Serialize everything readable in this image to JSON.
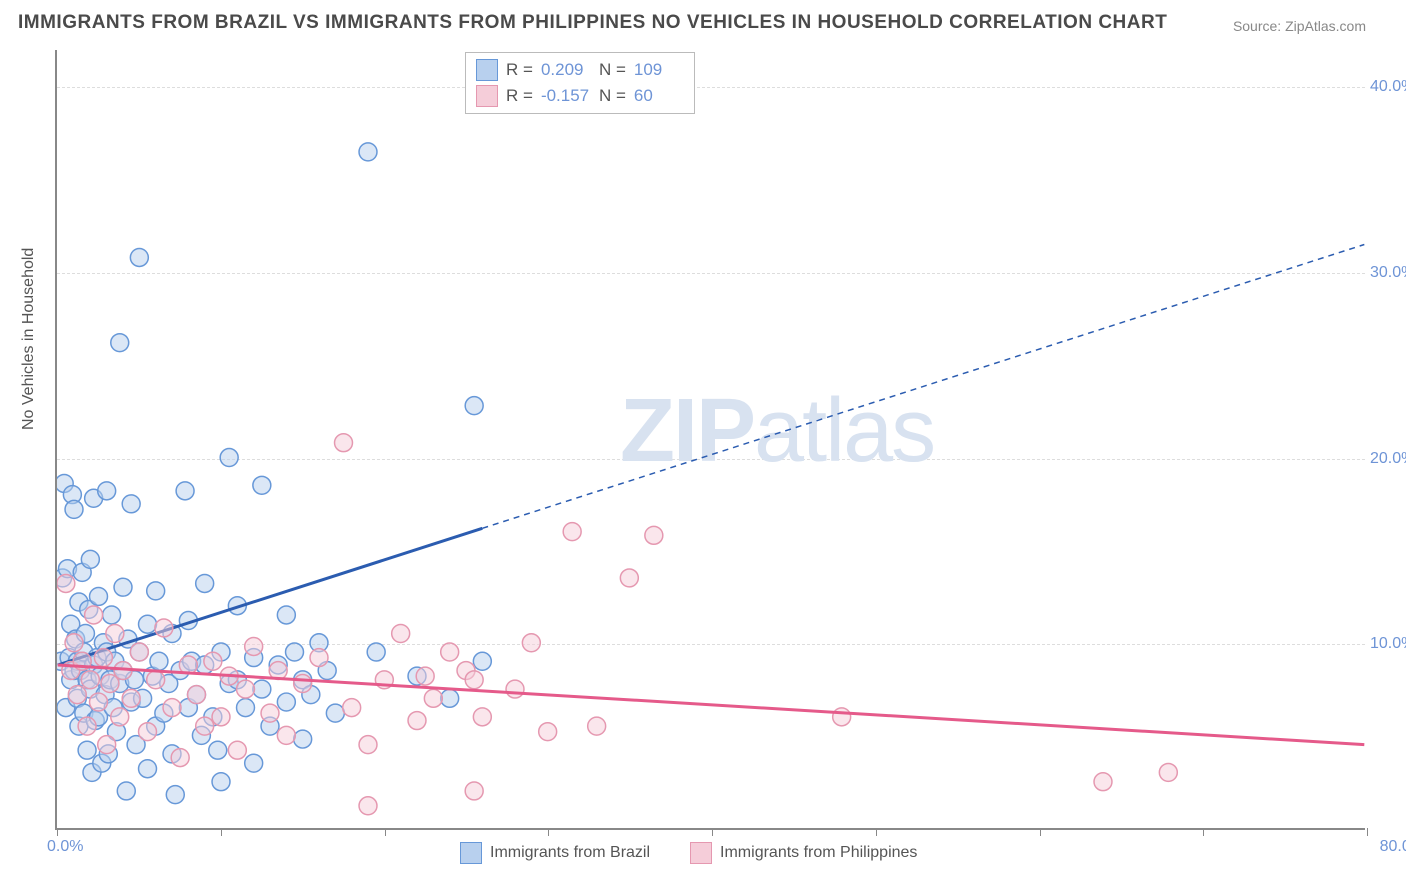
{
  "title": "IMMIGRANTS FROM BRAZIL VS IMMIGRANTS FROM PHILIPPINES NO VEHICLES IN HOUSEHOLD CORRELATION CHART",
  "source": "Source: ZipAtlas.com",
  "ylabel": "No Vehicles in Household",
  "watermark_a": "ZIP",
  "watermark_b": "atlas",
  "chart": {
    "type": "scatter-with-regression",
    "background_color": "#ffffff",
    "grid_color": "#dddddd",
    "axis_color": "#888888",
    "tick_label_color": "#6e94d6",
    "axis_label_color": "#555555",
    "xlim": [
      0,
      80
    ],
    "ylim": [
      0,
      42
    ],
    "xticks": [
      0,
      10,
      20,
      30,
      40,
      50,
      60,
      70,
      80
    ],
    "yticks": [
      10,
      20,
      30,
      40
    ],
    "xtick_labels": {
      "0": "0.0%",
      "80": "80.0%"
    },
    "ytick_labels": {
      "10": "10.0%",
      "20": "20.0%",
      "30": "30.0%",
      "40": "40.0%"
    },
    "marker_radius": 9,
    "marker_opacity": 0.5,
    "line_width_solid": 3,
    "line_width_dash": 1.5,
    "dash_pattern": "6,5"
  },
  "series": [
    {
      "name": "Immigrants from Brazil",
      "color_fill": "#b8d0ee",
      "color_stroke": "#6798d8",
      "line_color": "#2b5cb0",
      "R": "0.209",
      "N": "109",
      "regression": {
        "x1": 0,
        "y1": 8.8,
        "x2": 80,
        "y2": 31.5,
        "solid_until_x": 26
      },
      "points": [
        [
          0.2,
          9
        ],
        [
          0.3,
          13.5
        ],
        [
          0.4,
          18.6
        ],
        [
          0.5,
          6.5
        ],
        [
          0.6,
          14.0
        ],
        [
          0.7,
          9.2
        ],
        [
          0.8,
          11.0
        ],
        [
          0.8,
          8.0
        ],
        [
          0.9,
          18.0
        ],
        [
          1.0,
          17.2
        ],
        [
          1.0,
          8.5
        ],
        [
          1.1,
          10.2
        ],
        [
          1.2,
          7.0
        ],
        [
          1.2,
          9.0
        ],
        [
          1.3,
          5.5
        ],
        [
          1.3,
          12.2
        ],
        [
          1.4,
          8.5
        ],
        [
          1.5,
          9.0
        ],
        [
          1.5,
          13.8
        ],
        [
          1.6,
          6.2
        ],
        [
          1.6,
          9.5
        ],
        [
          1.7,
          10.5
        ],
        [
          1.8,
          8.0
        ],
        [
          1.8,
          4.2
        ],
        [
          1.9,
          11.8
        ],
        [
          2.0,
          7.5
        ],
        [
          2.0,
          14.5
        ],
        [
          2.1,
          3.0
        ],
        [
          2.2,
          8.8
        ],
        [
          2.2,
          17.8
        ],
        [
          2.3,
          5.8
        ],
        [
          2.4,
          9.2
        ],
        [
          2.5,
          6.0
        ],
        [
          2.5,
          12.5
        ],
        [
          2.6,
          8.2
        ],
        [
          2.7,
          3.5
        ],
        [
          2.8,
          10.0
        ],
        [
          2.9,
          7.2
        ],
        [
          3.0,
          9.5
        ],
        [
          3.0,
          18.2
        ],
        [
          3.1,
          4.0
        ],
        [
          3.2,
          8.0
        ],
        [
          3.3,
          11.5
        ],
        [
          3.4,
          6.5
        ],
        [
          3.5,
          9.0
        ],
        [
          3.6,
          5.2
        ],
        [
          3.8,
          7.8
        ],
        [
          3.8,
          26.2
        ],
        [
          4.0,
          8.5
        ],
        [
          4.0,
          13.0
        ],
        [
          4.2,
          2.0
        ],
        [
          4.3,
          10.2
        ],
        [
          4.5,
          6.8
        ],
        [
          4.5,
          17.5
        ],
        [
          4.7,
          8.0
        ],
        [
          4.8,
          4.5
        ],
        [
          5.0,
          9.5
        ],
        [
          5.0,
          30.8
        ],
        [
          5.2,
          7.0
        ],
        [
          5.5,
          11.0
        ],
        [
          5.5,
          3.2
        ],
        [
          5.8,
          8.2
        ],
        [
          6.0,
          5.5
        ],
        [
          6.0,
          12.8
        ],
        [
          6.2,
          9.0
        ],
        [
          6.5,
          6.2
        ],
        [
          6.8,
          7.8
        ],
        [
          7.0,
          10.5
        ],
        [
          7.0,
          4.0
        ],
        [
          7.2,
          1.8
        ],
        [
          7.5,
          8.5
        ],
        [
          7.8,
          18.2
        ],
        [
          8.0,
          6.5
        ],
        [
          8.0,
          11.2
        ],
        [
          8.2,
          9.0
        ],
        [
          8.5,
          7.2
        ],
        [
          8.8,
          5.0
        ],
        [
          9.0,
          8.8
        ],
        [
          9.0,
          13.2
        ],
        [
          9.5,
          6.0
        ],
        [
          9.8,
          4.2
        ],
        [
          10.0,
          9.5
        ],
        [
          10.0,
          2.5
        ],
        [
          10.5,
          7.8
        ],
        [
          10.5,
          20.0
        ],
        [
          11.0,
          8.0
        ],
        [
          11.0,
          12.0
        ],
        [
          11.5,
          6.5
        ],
        [
          12.0,
          9.2
        ],
        [
          12.0,
          3.5
        ],
        [
          12.5,
          7.5
        ],
        [
          12.5,
          18.5
        ],
        [
          13.0,
          5.5
        ],
        [
          13.5,
          8.8
        ],
        [
          14.0,
          11.5
        ],
        [
          14.0,
          6.8
        ],
        [
          14.5,
          9.5
        ],
        [
          15.0,
          8.0
        ],
        [
          15.0,
          4.8
        ],
        [
          15.5,
          7.2
        ],
        [
          16.0,
          10.0
        ],
        [
          16.5,
          8.5
        ],
        [
          17.0,
          6.2
        ],
        [
          19.0,
          36.5
        ],
        [
          19.5,
          9.5
        ],
        [
          22.0,
          8.2
        ],
        [
          24.0,
          7.0
        ],
        [
          25.5,
          22.8
        ],
        [
          26.0,
          9.0
        ]
      ]
    },
    {
      "name": "Immigrants from Philippines",
      "color_fill": "#f5cdd9",
      "color_stroke": "#e598b0",
      "line_color": "#e55a8a",
      "R": "-0.157",
      "N": "60",
      "regression": {
        "x1": 0,
        "y1": 8.8,
        "x2": 80,
        "y2": 4.5,
        "solid_until_x": 80
      },
      "points": [
        [
          0.5,
          13.2
        ],
        [
          0.8,
          8.5
        ],
        [
          1.0,
          10.0
        ],
        [
          1.2,
          7.2
        ],
        [
          1.5,
          9.0
        ],
        [
          1.8,
          5.5
        ],
        [
          2.0,
          8.0
        ],
        [
          2.2,
          11.5
        ],
        [
          2.5,
          6.8
        ],
        [
          2.8,
          9.2
        ],
        [
          3.0,
          4.5
        ],
        [
          3.2,
          7.8
        ],
        [
          3.5,
          10.5
        ],
        [
          3.8,
          6.0
        ],
        [
          4.0,
          8.5
        ],
        [
          4.5,
          7.0
        ],
        [
          5.0,
          9.5
        ],
        [
          5.5,
          5.2
        ],
        [
          6.0,
          8.0
        ],
        [
          6.5,
          10.8
        ],
        [
          7.0,
          6.5
        ],
        [
          7.5,
          3.8
        ],
        [
          8.0,
          8.8
        ],
        [
          8.5,
          7.2
        ],
        [
          9.0,
          5.5
        ],
        [
          9.5,
          9.0
        ],
        [
          10.0,
          6.0
        ],
        [
          10.5,
          8.2
        ],
        [
          11.0,
          4.2
        ],
        [
          11.5,
          7.5
        ],
        [
          12.0,
          9.8
        ],
        [
          13.0,
          6.2
        ],
        [
          13.5,
          8.5
        ],
        [
          14.0,
          5.0
        ],
        [
          15.0,
          7.8
        ],
        [
          16.0,
          9.2
        ],
        [
          17.5,
          20.8
        ],
        [
          18.0,
          6.5
        ],
        [
          19.0,
          4.5
        ],
        [
          19.0,
          1.2
        ],
        [
          20.0,
          8.0
        ],
        [
          21.0,
          10.5
        ],
        [
          22.0,
          5.8
        ],
        [
          22.5,
          8.2
        ],
        [
          23.0,
          7.0
        ],
        [
          24.0,
          9.5
        ],
        [
          25.0,
          8.5
        ],
        [
          25.5,
          8.0
        ],
        [
          25.5,
          2.0
        ],
        [
          26.0,
          6.0
        ],
        [
          28.0,
          7.5
        ],
        [
          29.0,
          10.0
        ],
        [
          30.0,
          5.2
        ],
        [
          31.5,
          16.0
        ],
        [
          33.0,
          5.5
        ],
        [
          35.0,
          13.5
        ],
        [
          36.5,
          15.8
        ],
        [
          48.0,
          6.0
        ],
        [
          64.0,
          2.5
        ],
        [
          68.0,
          3.0
        ]
      ]
    }
  ],
  "legend_top": {
    "r_label": "R =",
    "n_label": "N ="
  },
  "legend_bottom": [
    {
      "label": "Immigrants from Brazil",
      "fill": "#b8d0ee",
      "stroke": "#6798d8"
    },
    {
      "label": "Immigrants from Philippines",
      "fill": "#f5cdd9",
      "stroke": "#e598b0"
    }
  ]
}
